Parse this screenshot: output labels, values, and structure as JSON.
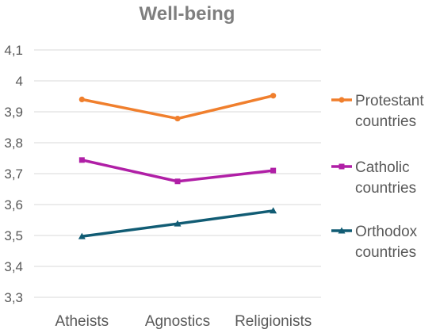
{
  "chart_data": {
    "type": "line",
    "title": "Well-being",
    "xlabel": "",
    "ylabel": "",
    "categories": [
      "Atheists",
      "Agnostics",
      "Religionists"
    ],
    "ylim": [
      3.3,
      4.1
    ],
    "yticks": [
      "3,3",
      "3,4",
      "3,5",
      "3,6",
      "3,7",
      "3,8",
      "3,9",
      "4",
      "4,1"
    ],
    "grid": true,
    "legend_position": "right",
    "series": [
      {
        "name_line1": "Protestant",
        "name_line2": "countries",
        "color": "#f07f2d",
        "marker": "circle",
        "values": [
          3.94,
          3.878,
          3.952
        ]
      },
      {
        "name_line1": "Catholic",
        "name_line2": "countries",
        "color": "#b01fa6",
        "marker": "square",
        "values": [
          3.744,
          3.675,
          3.71
        ]
      },
      {
        "name_line1": "Orthodox",
        "name_line2": "countries",
        "color": "#115c74",
        "marker": "triangle",
        "values": [
          3.497,
          3.538,
          3.58
        ]
      }
    ]
  }
}
